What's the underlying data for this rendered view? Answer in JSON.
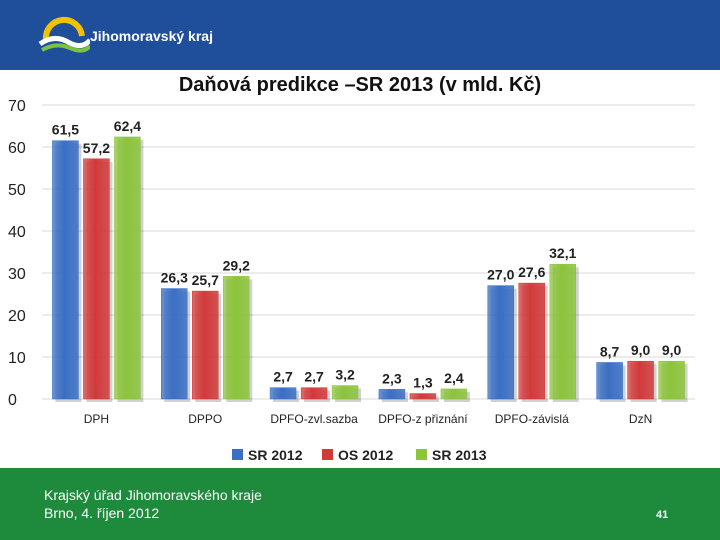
{
  "header": {
    "brand": "Jihomoravský kraj"
  },
  "footer": {
    "line1": "Krajský úřad Jihomoravského kraje",
    "line2": "Brno, 4. říjen 2012",
    "page": "41"
  },
  "chart_data": {
    "type": "bar",
    "title": "Daňová predikce –SR 2013 (v mld. Kč)",
    "categories": [
      "DPH",
      "DPPO",
      "DPFO-zvl.sazba",
      "DPFO-z přiznání",
      "DPFO-závislá",
      "DzN"
    ],
    "series": [
      {
        "name": "SR 2012",
        "color": "#3a6fc4",
        "values": [
          61.5,
          26.3,
          2.7,
          2.3,
          27.0,
          8.7
        ],
        "labels": [
          "61,5",
          "26,3",
          "2,7",
          "2,3",
          "27,0",
          "8,7"
        ]
      },
      {
        "name": "OS 2012",
        "color": "#d23a3a",
        "values": [
          57.2,
          25.7,
          2.7,
          1.3,
          27.6,
          9.0
        ],
        "labels": [
          "57,2",
          "25,7",
          "2,7",
          "1,3",
          "27,6",
          "9,0"
        ]
      },
      {
        "name": "SR 2013",
        "color": "#8cc43c",
        "values": [
          62.4,
          29.2,
          3.2,
          2.4,
          32.1,
          9.0
        ],
        "labels": [
          "62,4",
          "29,2",
          "3,2",
          "2,4",
          "32,1",
          "9,0"
        ]
      }
    ],
    "yticks": [
      "0",
      "10",
      "20",
      "30",
      "40",
      "50",
      "60",
      "70"
    ],
    "ylim": [
      0,
      70
    ],
    "grid": true,
    "legend": "bottom"
  }
}
